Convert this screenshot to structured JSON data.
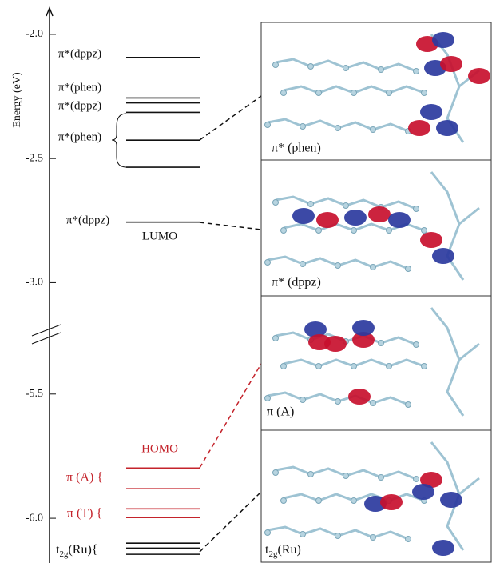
{
  "axis": {
    "label": "Energy (eV)",
    "segments": [
      {
        "ylim": [
          -3.15,
          -1.91
        ],
        "ticks": [
          {
            "value": -2.0,
            "label": "-2.0"
          },
          -2.5,
          {
            "value": -3.0,
            "label": "-3.0"
          }
        ]
      },
      {
        "ylim": [
          -6.18,
          -5.33
        ],
        "ticks": [
          -5.5,
          {
            "value": -6.0,
            "label": "-6.0"
          }
        ]
      }
    ]
  },
  "levels": [
    {
      "segment": 0,
      "energy": -2.093,
      "color": "#111111"
    },
    {
      "segment": 0,
      "energy": -2.256,
      "color": "#111111"
    },
    {
      "segment": 0,
      "energy": -2.276,
      "color": "#111111"
    },
    {
      "segment": 0,
      "energy": -2.314,
      "color": "#111111"
    },
    {
      "segment": 0,
      "energy": -2.426,
      "color": "#111111"
    },
    {
      "segment": 0,
      "energy": -2.535,
      "color": "#111111"
    },
    {
      "segment": 0,
      "energy": -2.756,
      "color": "#111111"
    },
    {
      "segment": 1,
      "energy": -5.798,
      "color": "#c4232b"
    },
    {
      "segment": 1,
      "energy": -5.881,
      "color": "#c4232b"
    },
    {
      "segment": 1,
      "energy": -5.962,
      "color": "#c4232b"
    },
    {
      "segment": 1,
      "energy": -5.997,
      "color": "#c4232b"
    },
    {
      "segment": 1,
      "energy": -6.1,
      "color": "#111111"
    },
    {
      "segment": 1,
      "energy": -6.12,
      "color": "#111111"
    },
    {
      "segment": 1,
      "energy": -6.145,
      "color": "#111111"
    }
  ],
  "level_labels": [
    "π*(dppz)",
    "π*(phen)",
    "π*(dppz)",
    "π*(phen)",
    "π*(dppz)",
    "LUMO",
    "HOMO",
    "π (A) {",
    "π (T) {"
  ],
  "t2g_label": {
    "main": "t",
    "sub": "2g",
    "rest": "(Ru){"
  },
  "panels": [
    {
      "caption": "π* (phen)"
    },
    {
      "caption": "π* (dppz)"
    },
    {
      "caption": "π (A)"
    },
    {
      "caption_main": "t",
      "caption_sub": "2g",
      "caption_rest": "(Ru)"
    }
  ]
}
